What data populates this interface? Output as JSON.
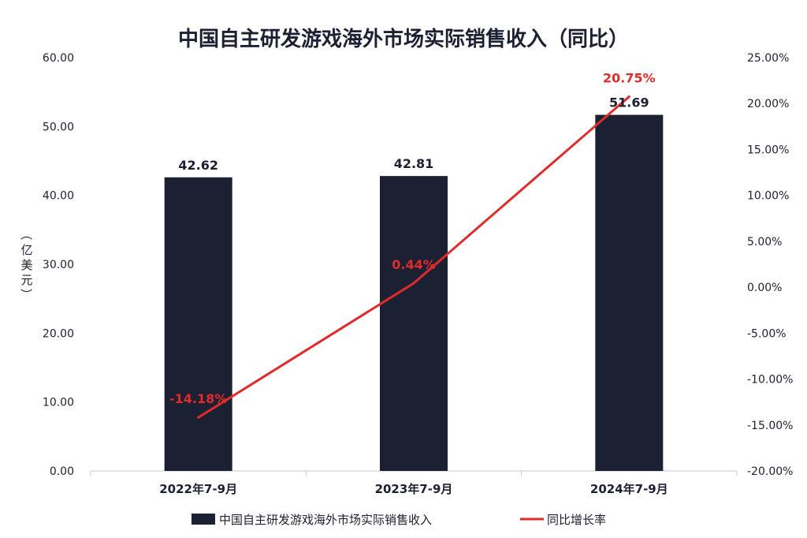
{
  "chart_data": {
    "type": "bar",
    "title": "中国自主研发游戏海外市场实际销售收入（同比）",
    "ylabel": "（亿美元）",
    "categories": [
      "2022年7-9月",
      "2023年7-9月",
      "2024年7-9月"
    ],
    "series": [
      {
        "name": "中国自主研发游戏海外市场实际销售收入",
        "type": "bar",
        "axis": "left",
        "values": [
          42.62,
          42.81,
          51.69
        ],
        "labels": [
          "42.62",
          "42.81",
          "51.69"
        ],
        "color": "#1c2033"
      },
      {
        "name": "同比增长率",
        "type": "line",
        "axis": "right",
        "values": [
          -14.18,
          0.44,
          20.75
        ],
        "labels": [
          "-14.18%",
          "0.44%",
          "20.75%"
        ],
        "color": "#e02b2b"
      }
    ],
    "ylim_left": [
      0,
      60
    ],
    "yticks_left": [
      "0.00",
      "10.00",
      "20.00",
      "30.00",
      "40.00",
      "50.00",
      "60.00"
    ],
    "ylim_right": [
      -20,
      25
    ],
    "yticks_right": [
      "-20.00%",
      "-15.00%",
      "-10.00%",
      "-5.00%",
      "0.00%",
      "5.00%",
      "10.00%",
      "15.00%",
      "20.00%",
      "25.00%"
    ],
    "grid": false,
    "legend_position": "bottom"
  }
}
